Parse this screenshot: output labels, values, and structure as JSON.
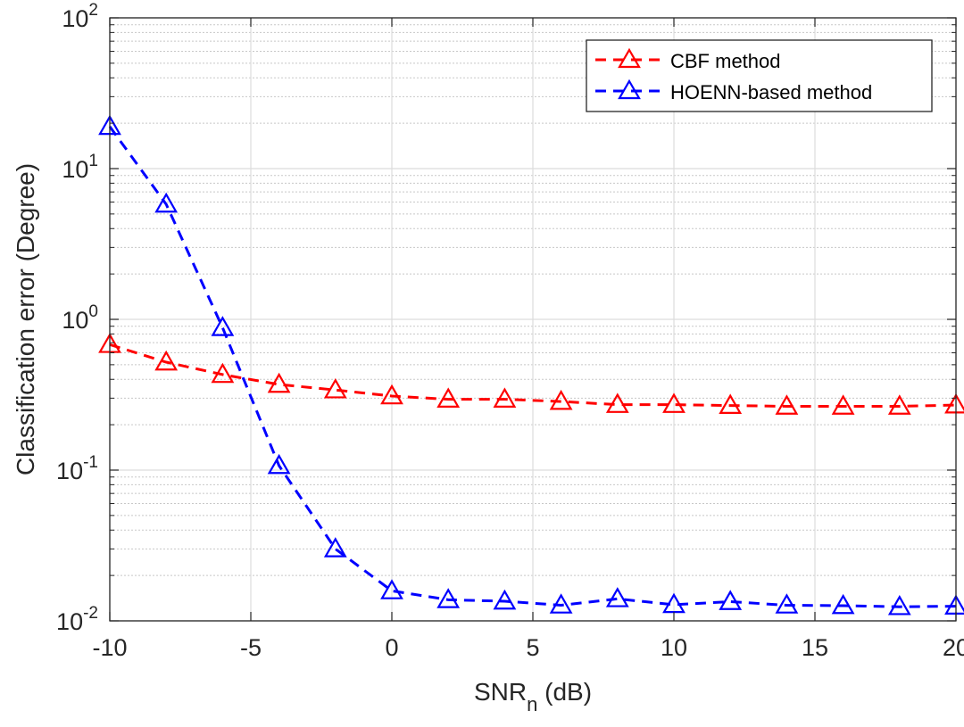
{
  "chart_data": {
    "type": "line",
    "title": "",
    "xlabel": "SNR",
    "xlabel_subscript": "n",
    "xlabel_unit": "(dB)",
    "ylabel": "Classification error (Degree)",
    "xlim": [
      -10,
      20
    ],
    "ylim": [
      0.01,
      100
    ],
    "yscale": "log",
    "grid": true,
    "minor_grid": true,
    "legend_position": "top-right",
    "x_ticks": [
      {
        "value": -10,
        "label": "-10"
      },
      {
        "value": -5,
        "label": "-5"
      },
      {
        "value": 0,
        "label": "0"
      },
      {
        "value": 5,
        "label": "5"
      },
      {
        "value": 10,
        "label": "10"
      },
      {
        "value": 15,
        "label": "15"
      },
      {
        "value": 20,
        "label": "20"
      }
    ],
    "y_ticks": [
      {
        "value": 0.01,
        "base": "10",
        "exp": "-2"
      },
      {
        "value": 0.1,
        "base": "10",
        "exp": "-1"
      },
      {
        "value": 1,
        "base": "10",
        "exp": "0"
      },
      {
        "value": 10,
        "base": "10",
        "exp": "1"
      },
      {
        "value": 100,
        "base": "10",
        "exp": "2"
      }
    ],
    "x": [
      -10,
      -8,
      -6,
      -4,
      -2,
      0,
      2,
      4,
      6,
      8,
      10,
      12,
      14,
      16,
      18,
      20
    ],
    "series": [
      {
        "name": "CBF method",
        "color": "#ff0000",
        "marker": "triangle",
        "linestyle": "dashed",
        "values": [
          0.68,
          0.52,
          0.43,
          0.37,
          0.34,
          0.31,
          0.295,
          0.295,
          0.285,
          0.272,
          0.272,
          0.268,
          0.265,
          0.265,
          0.265,
          0.27
        ]
      },
      {
        "name": "HOENN-based method",
        "color": "#0000ff",
        "marker": "triangle",
        "linestyle": "dashed",
        "values": [
          19,
          5.8,
          0.88,
          0.107,
          0.03,
          0.0158,
          0.0138,
          0.0135,
          0.0127,
          0.014,
          0.0128,
          0.0134,
          0.0127,
          0.0126,
          0.0124,
          0.0125
        ]
      }
    ]
  }
}
